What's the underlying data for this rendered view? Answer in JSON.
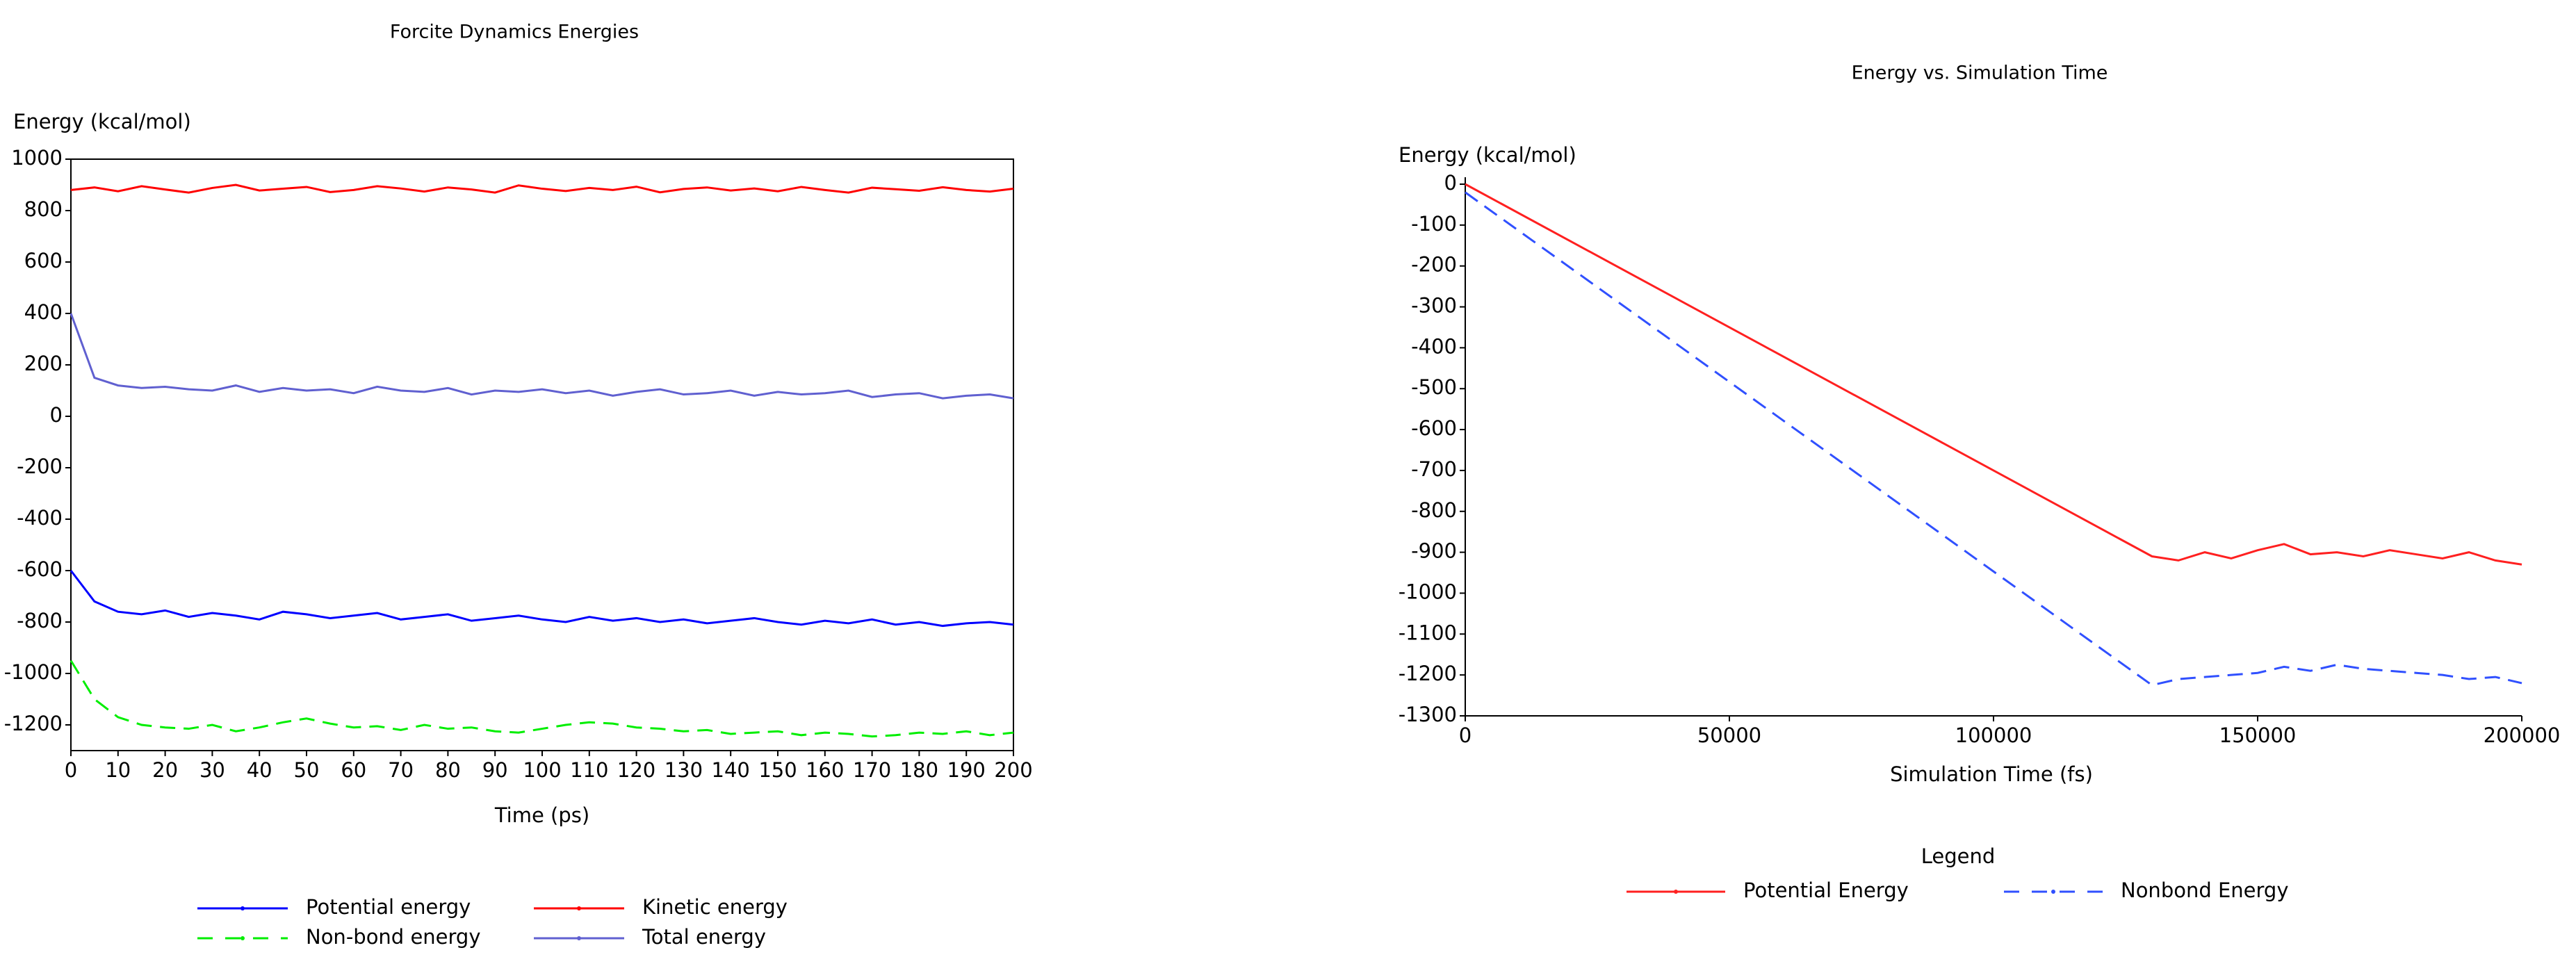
{
  "chart_data": [
    {
      "type": "line",
      "title": "Forcite Dynamics Energies",
      "y_label": "Energy (kcal/mol)",
      "x_label": "Time (ps)",
      "x": [
        0,
        5,
        10,
        15,
        20,
        25,
        30,
        35,
        40,
        45,
        50,
        55,
        60,
        65,
        70,
        75,
        80,
        85,
        90,
        95,
        100,
        105,
        110,
        115,
        120,
        125,
        130,
        135,
        140,
        145,
        150,
        155,
        160,
        165,
        170,
        175,
        180,
        185,
        190,
        195,
        200
      ],
      "xlim": [
        0,
        200
      ],
      "ylim": [
        -1300,
        1000
      ],
      "xticks": [
        0,
        10,
        20,
        30,
        40,
        50,
        60,
        70,
        80,
        90,
        100,
        110,
        120,
        130,
        140,
        150,
        160,
        170,
        180,
        190,
        200
      ],
      "yticks": [
        1000,
        800,
        600,
        400,
        200,
        0,
        -200,
        -400,
        -600,
        -800,
        -1000,
        -1200
      ],
      "frame": true,
      "series": [
        {
          "name": "Potential energy",
          "color": "#0000ff",
          "dashed": false,
          "values": [
            -600,
            -720,
            -760,
            -770,
            -755,
            -780,
            -765,
            -775,
            -790,
            -760,
            -770,
            -785,
            -775,
            -765,
            -790,
            -780,
            -770,
            -795,
            -785,
            -775,
            -790,
            -800,
            -780,
            -795,
            -785,
            -800,
            -790,
            -805,
            -795,
            -785,
            -800,
            -810,
            -795,
            -805,
            -790,
            -810,
            -800,
            -815,
            -805,
            -800,
            -810
          ]
        },
        {
          "name": "Non-bond energy",
          "color": "#00ee00",
          "dashed": true,
          "values": [
            -950,
            -1100,
            -1170,
            -1200,
            -1210,
            -1215,
            -1200,
            -1225,
            -1210,
            -1190,
            -1175,
            -1195,
            -1210,
            -1205,
            -1220,
            -1200,
            -1215,
            -1210,
            -1225,
            -1230,
            -1215,
            -1200,
            -1190,
            -1195,
            -1210,
            -1215,
            -1225,
            -1220,
            -1235,
            -1230,
            -1225,
            -1240,
            -1230,
            -1235,
            -1245,
            -1240,
            -1230,
            -1235,
            -1225,
            -1240,
            -1230
          ]
        },
        {
          "name": "Kinetic energy",
          "color": "#ff0000",
          "dashed": false,
          "values": [
            880,
            890,
            875,
            895,
            882,
            870,
            888,
            900,
            878,
            885,
            892,
            872,
            880,
            895,
            886,
            874,
            890,
            882,
            870,
            898,
            885,
            876,
            888,
            880,
            893,
            871,
            884,
            890,
            878,
            886,
            875,
            892,
            880,
            870,
            889,
            883,
            877,
            891,
            880,
            874,
            885
          ]
        },
        {
          "name": "Total energy",
          "color": "#6060d0",
          "dashed": false,
          "values": [
            400,
            150,
            120,
            110,
            115,
            105,
            100,
            120,
            95,
            110,
            100,
            105,
            90,
            115,
            100,
            95,
            110,
            85,
            100,
            95,
            105,
            90,
            100,
            80,
            95,
            105,
            85,
            90,
            100,
            80,
            95,
            85,
            90,
            100,
            75,
            85,
            90,
            70,
            80,
            85,
            70
          ]
        }
      ]
    },
    {
      "type": "line",
      "title": "Energy vs. Simulation Time",
      "y_label": "Energy (kcal/mol)",
      "x_label": "Simulation Time (fs)",
      "legend_title": "Legend",
      "x": [
        0,
        130000,
        135000,
        140000,
        145000,
        150000,
        155000,
        160000,
        165000,
        170000,
        175000,
        180000,
        185000,
        190000,
        195000,
        200000
      ],
      "xlim": [
        0,
        200000
      ],
      "ylim": [
        -1300,
        0
      ],
      "xticks": [
        0,
        50000,
        100000,
        150000,
        200000
      ],
      "yticks": [
        0,
        -100,
        -200,
        -300,
        -400,
        -500,
        -600,
        -700,
        -800,
        -900,
        -1000,
        -1100,
        -1200,
        -1300
      ],
      "frame": false,
      "series": [
        {
          "name": "Potential Energy",
          "color": "#ff2020",
          "dashed": false,
          "values": [
            0,
            -910,
            -920,
            -900,
            -915,
            -895,
            -880,
            -905,
            -900,
            -910,
            -895,
            -905,
            -915,
            -900,
            -920,
            -930
          ]
        },
        {
          "name": "Nonbond Energy",
          "color": "#3050ff",
          "dashed": true,
          "values": [
            -20,
            -1225,
            -1210,
            -1205,
            -1200,
            -1195,
            -1180,
            -1190,
            -1175,
            -1185,
            -1190,
            -1195,
            -1200,
            -1210,
            -1205,
            -1220
          ]
        }
      ]
    }
  ]
}
